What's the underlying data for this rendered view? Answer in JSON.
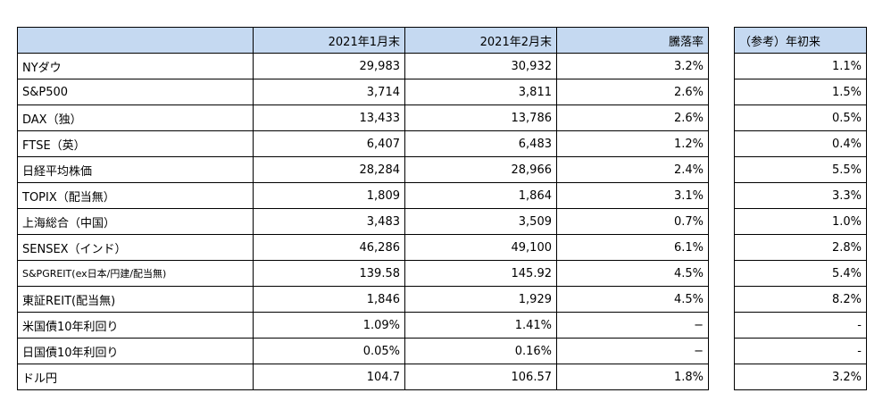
{
  "headers": [
    "",
    "2021年1月末",
    "2021年2月末",
    "騰落率"
  ],
  "reference_header": "（参考）年初来",
  "rows": [
    {
      "name": "NYダウ",
      "jan": "29,983",
      "feb": "30,932",
      "change": "3.2%",
      "ytd": "1.1%"
    },
    {
      "name": "S&P500",
      "jan": "3,714",
      "feb": "3,811",
      "change": "2.6%",
      "ytd": "1.5%"
    },
    {
      "name": "DAX（独）",
      "jan": "13,433",
      "feb": "13,786",
      "change": "2.6%",
      "ytd": "0.5%"
    },
    {
      "name": "FTSE（英）",
      "jan": "6,407",
      "feb": "6,483",
      "change": "1.2%",
      "ytd": "0.4%"
    },
    {
      "name": "日経平均株価",
      "jan": "28,284",
      "feb": "28,966",
      "change": "2.4%",
      "ytd": "5.5%"
    },
    {
      "name": "TOPIX（配当無）",
      "jan": "1,809",
      "feb": "1,864",
      "change": "3.1%",
      "ytd": "3.3%"
    },
    {
      "name": "上海総合（中国）",
      "jan": "3,483",
      "feb": "3,509",
      "change": "0.7%",
      "ytd": "1.0%"
    },
    {
      "name": "SENSEX（インド）",
      "jan": "46,286",
      "feb": "49,100",
      "change": "6.1%",
      "ytd": "2.8%"
    },
    {
      "name": "S&PGREIT(ex日本/円建/配当無)",
      "jan": "139.58",
      "feb": "145.92",
      "change": "4.5%",
      "ytd": "5.4%",
      "small": true
    },
    {
      "name": "東証REIT(配当無)",
      "jan": "1,846",
      "feb": "1,929",
      "change": "4.5%",
      "ytd": "8.2%"
    },
    {
      "name": "米国債10年利回り",
      "jan": "1.09%",
      "feb": "1.41%",
      "change": "−",
      "ytd": "-"
    },
    {
      "name": "日国債10年利回り",
      "jan": "0.05%",
      "feb": "0.16%",
      "change": "−",
      "ytd": "-"
    },
    {
      "name": "ドル円",
      "jan": "104.7",
      "feb": "106.57",
      "change": "1.8%",
      "ytd": "3.2%"
    }
  ]
}
